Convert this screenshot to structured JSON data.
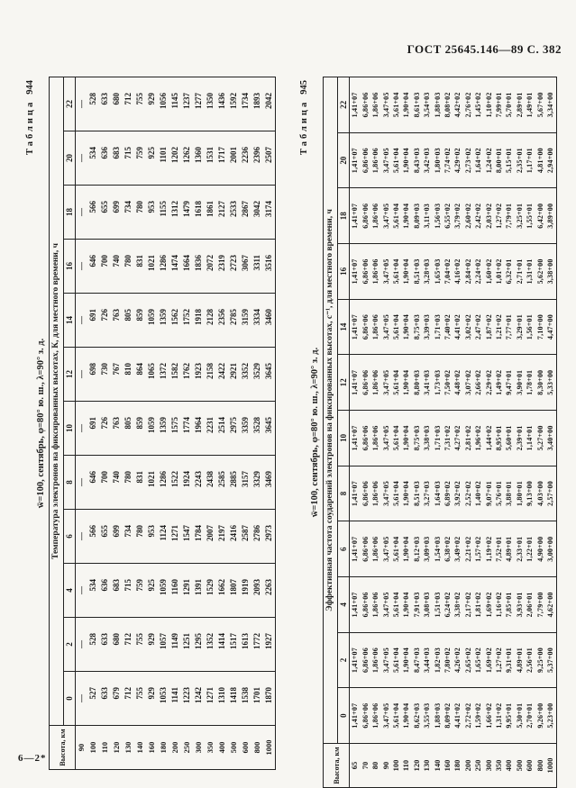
{
  "page": {
    "header": "ГОСТ 25645.146—89 С. 382",
    "footer": "6—2*"
  },
  "table944": {
    "label_word": "Таблица",
    "label_num": "944",
    "condition": "w̄=100, сентябрь, φ=80° ю. ш., λ=90° з. д.",
    "span_header": "Температура электронов на фиксированных высотах, К, для местного времени, ч",
    "height_header": "Высо­та, км",
    "hours": [
      "0",
      "2",
      "4",
      "6",
      "8",
      "10",
      "12",
      "14",
      "16",
      "18",
      "20",
      "22"
    ],
    "heights": [
      "90",
      "100",
      "110",
      "120",
      "130",
      "140",
      "160",
      "180",
      "200",
      "250",
      "300",
      "350",
      "400",
      "500",
      "600",
      "800",
      "1000"
    ],
    "rows": [
      [
        "—",
        "—",
        "—",
        "—",
        "—",
        "—",
        "—",
        "—",
        "—",
        "—",
        "—",
        "—"
      ],
      [
        "527",
        "528",
        "534",
        "566",
        "646",
        "691",
        "698",
        "691",
        "646",
        "566",
        "534",
        "528"
      ],
      [
        "633",
        "633",
        "636",
        "655",
        "700",
        "726",
        "730",
        "726",
        "700",
        "655",
        "636",
        "633"
      ],
      [
        "679",
        "680",
        "683",
        "699",
        "740",
        "763",
        "767",
        "763",
        "740",
        "699",
        "683",
        "680"
      ],
      [
        "712",
        "712",
        "715",
        "734",
        "780",
        "805",
        "810",
        "805",
        "780",
        "734",
        "715",
        "712"
      ],
      [
        "755",
        "755",
        "759",
        "780",
        "831",
        "859",
        "864",
        "859",
        "831",
        "780",
        "759",
        "755"
      ],
      [
        "929",
        "929",
        "925",
        "953",
        "1021",
        "1059",
        "1065",
        "1059",
        "1021",
        "953",
        "925",
        "929"
      ],
      [
        "1053",
        "1057",
        "1059",
        "1124",
        "1286",
        "1359",
        "1372",
        "1359",
        "1286",
        "1155",
        "1101",
        "1056"
      ],
      [
        "1141",
        "1149",
        "1160",
        "1271",
        "1522",
        "1575",
        "1582",
        "1562",
        "1474",
        "1312",
        "1202",
        "1145"
      ],
      [
        "1223",
        "1251",
        "1291",
        "1547",
        "1924",
        "1774",
        "1762",
        "1752",
        "1664",
        "1479",
        "1262",
        "1237"
      ],
      [
        "1242",
        "1295",
        "1391",
        "1784",
        "2243",
        "1964",
        "1923",
        "1918",
        "1836",
        "1618",
        "1360",
        "1277"
      ],
      [
        "1271",
        "1352",
        "1529",
        "2007",
        "2438",
        "2231",
        "2158",
        "2128",
        "2072",
        "1861",
        "1531",
        "1350"
      ],
      [
        "1310",
        "1414",
        "1662",
        "2197",
        "2585",
        "2514",
        "2422",
        "2356",
        "2319",
        "2127",
        "1717",
        "1436"
      ],
      [
        "1418",
        "1517",
        "1807",
        "2416",
        "2885",
        "2975",
        "2921",
        "2785",
        "2723",
        "2533",
        "2001",
        "1592"
      ],
      [
        "1538",
        "1613",
        "1919",
        "2587",
        "3157",
        "3359",
        "3352",
        "3159",
        "3067",
        "2867",
        "2236",
        "1734"
      ],
      [
        "1701",
        "1772",
        "2093",
        "2786",
        "3329",
        "3528",
        "3529",
        "3334",
        "3311",
        "3042",
        "2396",
        "1893"
      ],
      [
        "1870",
        "1927",
        "2263",
        "2973",
        "3469",
        "3645",
        "3645",
        "3460",
        "3516",
        "3174",
        "2507",
        "2042"
      ]
    ]
  },
  "table945": {
    "label_word": "Таблица",
    "label_num": "945",
    "condition": "w̄=100, сентябрь, φ=80° ю. ш., λ=90° з. д.",
    "span_header": "Эффективная частота соударений электронов на фиксированных высотах, с⁻¹, для местного времени, ч",
    "height_header": "Высо­та, км",
    "hours": [
      "0",
      "2",
      "4",
      "6",
      "8",
      "10",
      "12",
      "14",
      "16",
      "18",
      "20",
      "22"
    ],
    "heights": [
      "65",
      "70",
      "80",
      "90",
      "100",
      "110",
      "120",
      "130",
      "140",
      "160",
      "180",
      "200",
      "250",
      "300",
      "350",
      "400",
      "500",
      "600",
      "800",
      "1000"
    ],
    "rows": [
      [
        "1,41+07",
        "1,41+07",
        "1,41+07",
        "1,41+07",
        "1,41+07",
        "1,41+07",
        "1,41+07",
        "1,41+07",
        "1,41+07",
        "1,41+07",
        "1,41+07",
        "1,41+07"
      ],
      [
        "6,86+06",
        "6,86+06",
        "6,86+06",
        "6,86+06",
        "6,86+06",
        "6,86+06",
        "6,86+06",
        "6,86+06",
        "6,86+06",
        "6,86+06",
        "6,86+06",
        "6,86+06"
      ],
      [
        "1,86+06",
        "1,86+06",
        "1,86+06",
        "1,86+06",
        "1,86+06",
        "1,86+06",
        "1,86+06",
        "1,86+06",
        "1,86+06",
        "1,86+06",
        "1,86+06",
        "1,86+06"
      ],
      [
        "3,47+05",
        "3,47+05",
        "3,47+05",
        "3,47+05",
        "3,47+05",
        "3,47+05",
        "3,47+05",
        "3,47+05",
        "3,47+05",
        "3,47+05",
        "3,47+05",
        "3,47+05"
      ],
      [
        "5,61+04",
        "5,61+04",
        "5,61+04",
        "5,61+04",
        "5,61+04",
        "5,61+04",
        "5,61+04",
        "5,61+04",
        "5,61+04",
        "5,61+04",
        "5,61+04",
        "5,61+04"
      ],
      [
        "1,90+04",
        "1,90+04",
        "1,90+04",
        "1,90+04",
        "1,90+04",
        "1,90+04",
        "1,90+04",
        "1,90+04",
        "1,90+04",
        "1,90+04",
        "1,90+04",
        "1,90+04"
      ],
      [
        "8,62+03",
        "8,47+03",
        "7,91+03",
        "8,12+03",
        "8,51+03",
        "8,75+03",
        "8,80+03",
        "8,75+03",
        "8,51+03",
        "8,09+03",
        "8,43+03",
        "8,61+03"
      ],
      [
        "3,55+03",
        "3,44+03",
        "3,08+03",
        "3,09+03",
        "3,27+03",
        "3,38+03",
        "3,41+03",
        "3,39+03",
        "3,28+03",
        "3,11+03",
        "3,42+03",
        "3,54+03"
      ],
      [
        "1,88+03",
        "1,82+03",
        "1,51+03",
        "1,54+03",
        "1,64+03",
        "1,71+03",
        "1,73+03",
        "1,71+03",
        "1,65+03",
        "1,56+03",
        "1,80+03",
        "1,88+03"
      ],
      [
        "8,09+02",
        "7,80+02",
        "6,24+02",
        "6,38+02",
        "6,89+02",
        "7,31+02",
        "7,50+02",
        "7,40+02",
        "7,04+02",
        "6,55+02",
        "7,74+02",
        "8,08+02"
      ],
      [
        "4,41+02",
        "4,26+02",
        "3,38+02",
        "3,49+02",
        "3,92+02",
        "4,27+02",
        "4,48+02",
        "4,41+02",
        "4,16+02",
        "3,79+02",
        "4,29+02",
        "4,42+02"
      ],
      [
        "2,72+02",
        "2,65+02",
        "2,17+02",
        "2,21+02",
        "2,52+02",
        "2,81+02",
        "3,07+02",
        "3,02+02",
        "2,84+02",
        "2,60+02",
        "2,73+02",
        "2,76+02"
      ],
      [
        "1,59+02",
        "1,65+02",
        "1,81+02",
        "1,57+02",
        "1,40+02",
        "1,96+02",
        "2,66+02",
        "2,47+02",
        "2,24+02",
        "2,42+02",
        "1,64+02",
        "1,45+02"
      ],
      [
        "1,66+02",
        "1,69+02",
        "1,69+02",
        "1,19+02",
        "9,07+01",
        "1,44+02",
        "2,29+02",
        "1,87+02",
        "1,60+02",
        "2,03+02",
        "1,24+02",
        "1,10+02"
      ],
      [
        "1,31+02",
        "1,27+02",
        "1,16+02",
        "7,52+01",
        "5,76+01",
        "8,95+01",
        "1,49+02",
        "1,21+02",
        "1,01+02",
        "1,27+02",
        "8,00+01",
        "7,99+01"
      ],
      [
        "9,95+01",
        "9,31+01",
        "7,85+01",
        "4,89+01",
        "3,88+01",
        "5,60+01",
        "9,47+01",
        "7,77+01",
        "6,32+01",
        "7,79+01",
        "5,15+01",
        "5,70+01"
      ],
      [
        "5,30+01",
        "4,89+01",
        "3,93+01",
        "2,33+01",
        "1,80+01",
        "2,39+01",
        "3,90+01",
        "3,29+01",
        "2,71+01",
        "3,25+01",
        "2,35+01",
        "2,89+01"
      ],
      [
        "2,70+01",
        "2,56+01",
        "2,06+01",
        "1,22+01",
        "9,13+00",
        "1,14+01",
        "1,78+01",
        "1,56+01",
        "1,31+01",
        "1,55+01",
        "1,17+01",
        "1,49+01"
      ],
      [
        "9,26+00",
        "9,25+00",
        "7,79+00",
        "4,90+00",
        "4,03+00",
        "5,27+00",
        "8,30+00",
        "7,10+00",
        "5,62+00",
        "6,42+00",
        "4,81+00",
        "5,67+00"
      ],
      [
        "5,23+00",
        "5,37+00",
        "4,62+00",
        "3,00+00",
        "2,57+00",
        "3,40+00",
        "5,33+00",
        "4,47+00",
        "3,38+00",
        "3,89+00",
        "2,94+00",
        "3,34+00"
      ]
    ]
  }
}
